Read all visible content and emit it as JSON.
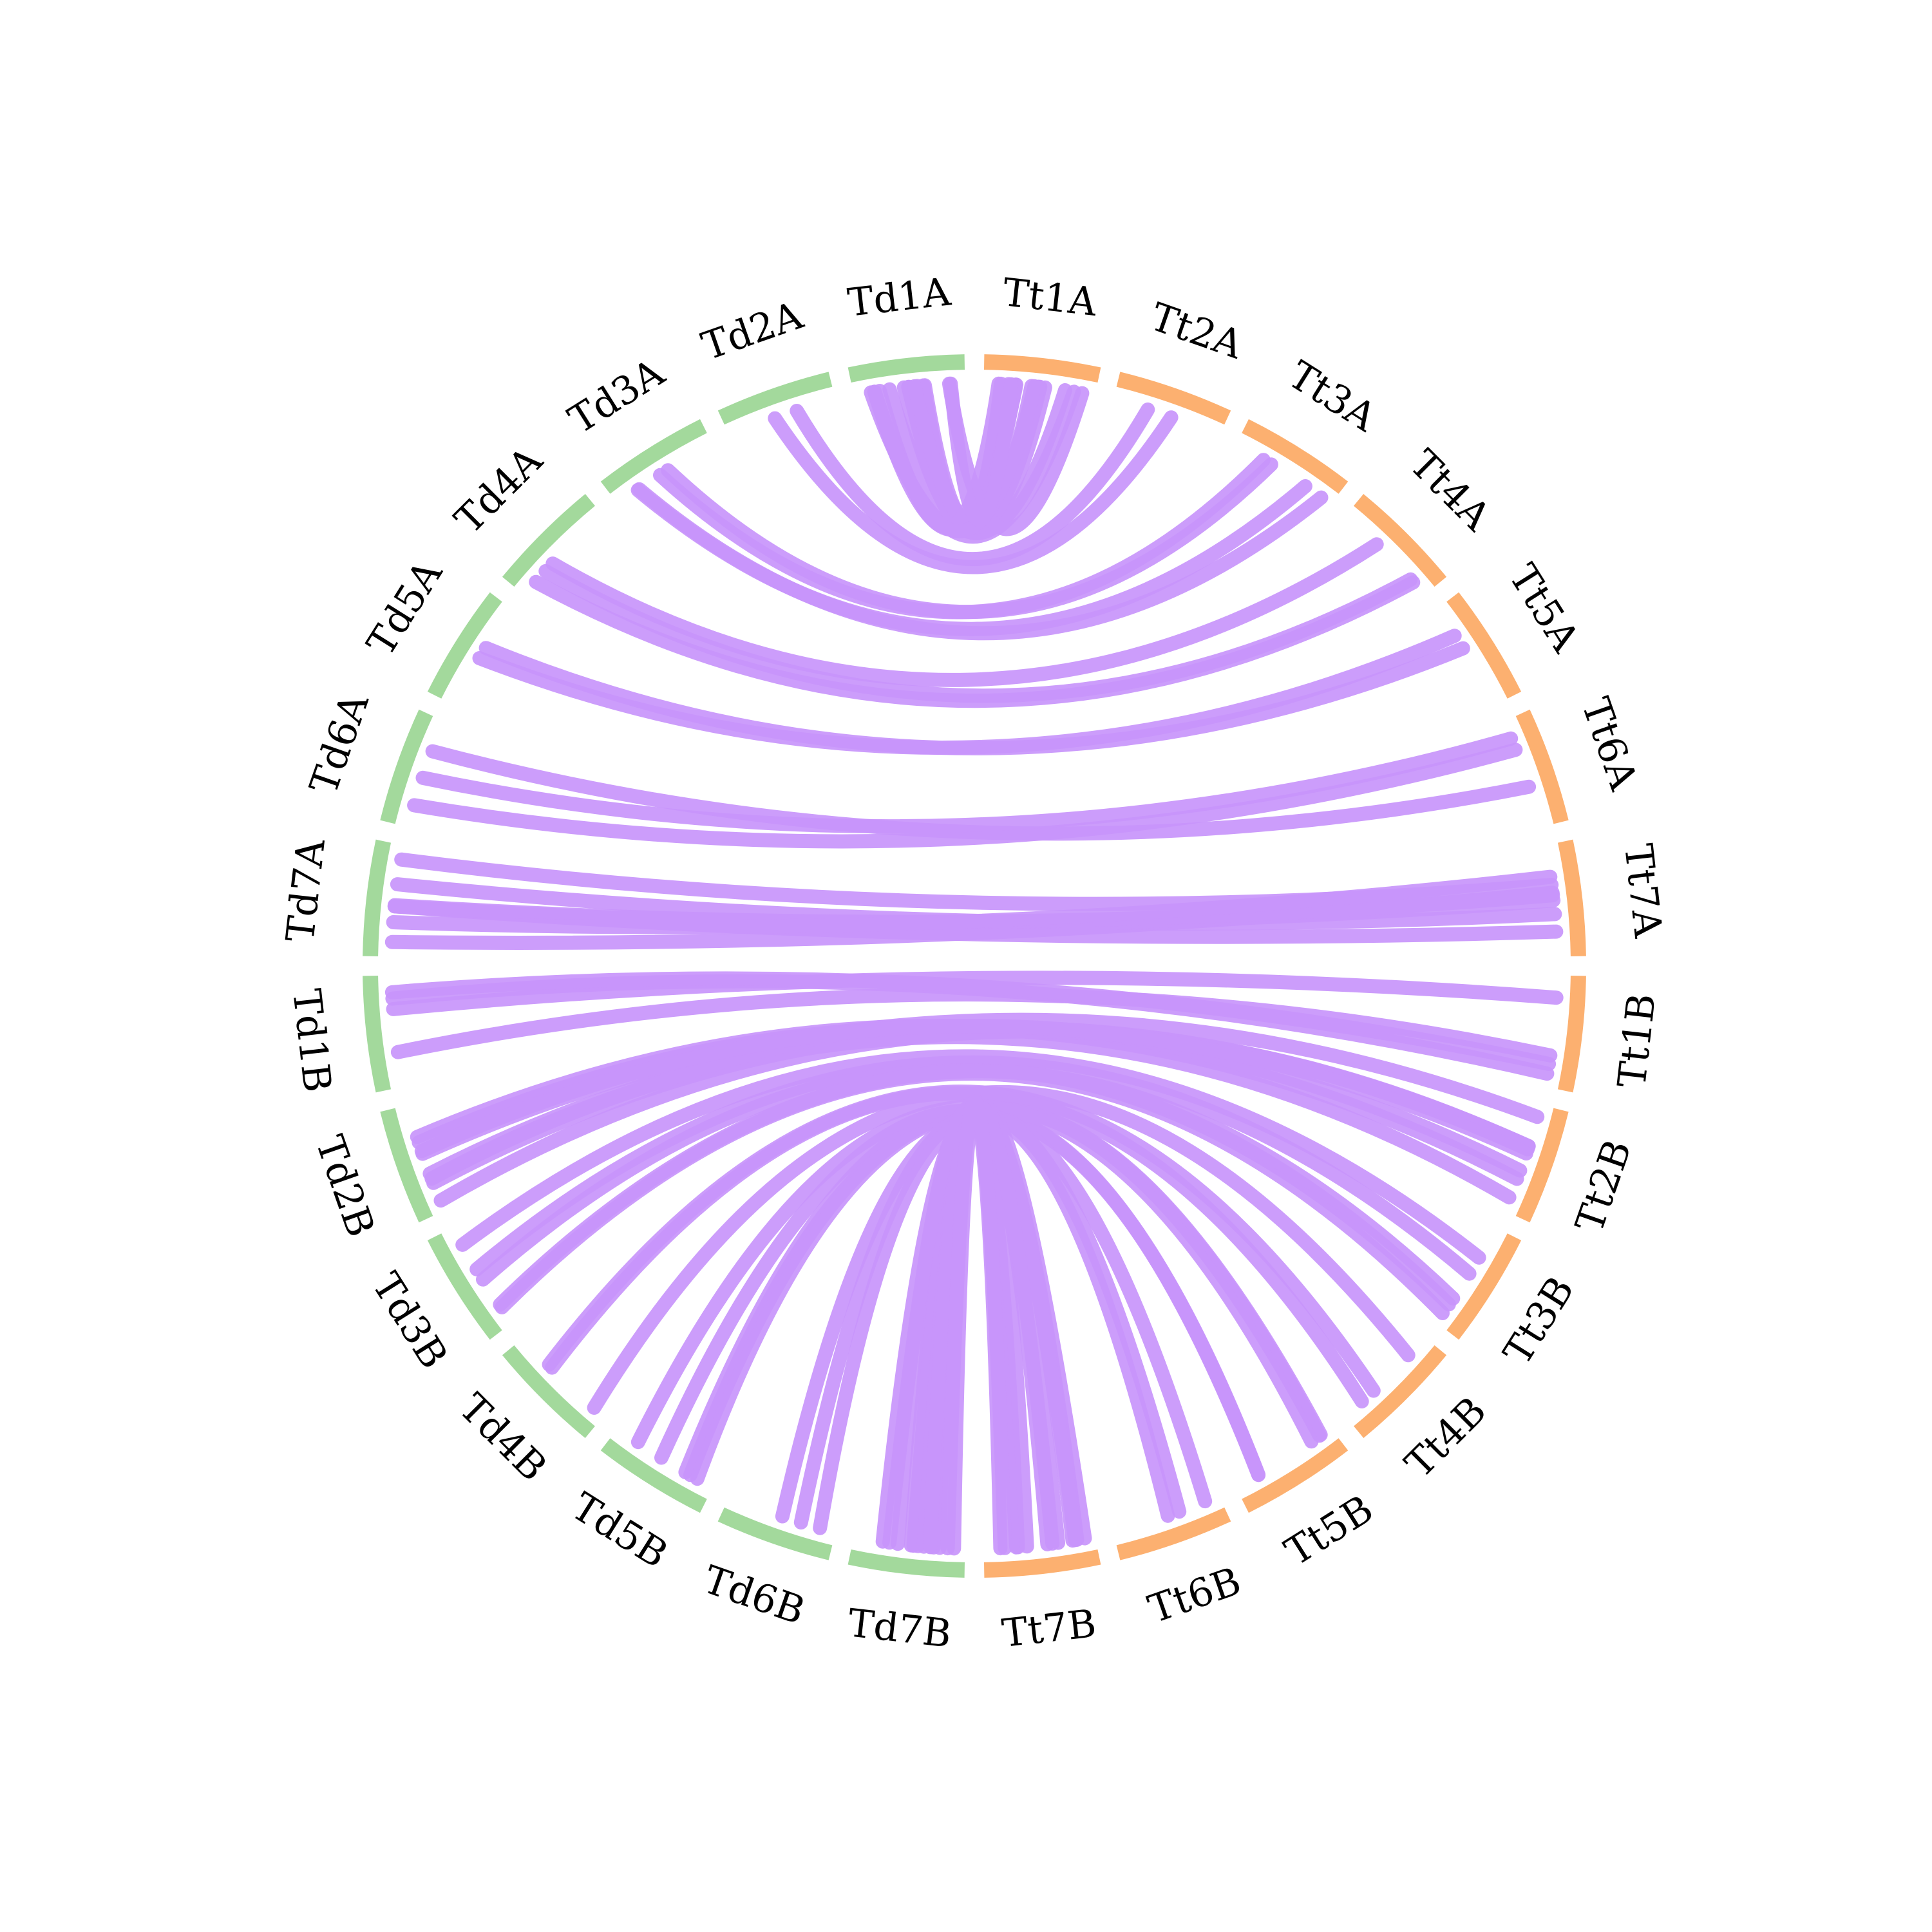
{
  "colors": {
    "background": "#ffffff",
    "td_segment": "#a3d99c",
    "tt_segment": "#fcb070",
    "link": "#c895fb",
    "label": "#000000"
  },
  "chromosomes": [
    {
      "id": "Td1A",
      "label": "Td1A",
      "group": "td"
    },
    {
      "id": "Td2A",
      "label": "Td2A",
      "group": "td"
    },
    {
      "id": "Td3A",
      "label": "Td3A",
      "group": "td"
    },
    {
      "id": "Td4A",
      "label": "Td4A",
      "group": "td"
    },
    {
      "id": "Td5A",
      "label": "Td5A",
      "group": "td"
    },
    {
      "id": "Td6A",
      "label": "Td6A",
      "group": "td"
    },
    {
      "id": "Td7A",
      "label": "Td7A",
      "group": "td"
    },
    {
      "id": "Td1B",
      "label": "Td1B",
      "group": "td"
    },
    {
      "id": "Td2B",
      "label": "Td2B",
      "group": "td"
    },
    {
      "id": "Td3B",
      "label": "Td3B",
      "group": "td"
    },
    {
      "id": "Td4B",
      "label": "Td4B",
      "group": "td"
    },
    {
      "id": "Td5B",
      "label": "Td5B",
      "group": "td"
    },
    {
      "id": "Td6B",
      "label": "Td6B",
      "group": "td"
    },
    {
      "id": "Td7B",
      "label": "Td7B",
      "group": "td"
    },
    {
      "id": "Tt1A",
      "label": "Tt1A",
      "group": "tt"
    },
    {
      "id": "Tt2A",
      "label": "Tt2A",
      "group": "tt"
    },
    {
      "id": "Tt3A",
      "label": "Tt3A",
      "group": "tt"
    },
    {
      "id": "Tt4A",
      "label": "Tt4A",
      "group": "tt"
    },
    {
      "id": "Tt5A",
      "label": "Tt5A",
      "group": "tt"
    },
    {
      "id": "Tt6A",
      "label": "Tt6A",
      "group": "tt"
    },
    {
      "id": "Tt7A",
      "label": "Tt7A",
      "group": "tt"
    },
    {
      "id": "Tt1B",
      "label": "Tt1B",
      "group": "tt"
    },
    {
      "id": "Tt2B",
      "label": "Tt2B",
      "group": "tt"
    },
    {
      "id": "Tt3B",
      "label": "Tt3B",
      "group": "tt"
    },
    {
      "id": "Tt4B",
      "label": "Tt4B",
      "group": "tt"
    },
    {
      "id": "Tt5B",
      "label": "Tt5B",
      "group": "tt"
    },
    {
      "id": "Tt6B",
      "label": "Tt6B",
      "group": "tt"
    },
    {
      "id": "Tt7B",
      "label": "Tt7B",
      "group": "tt"
    }
  ],
  "links": [
    {
      "from": "Td1A",
      "to": "Tt1A",
      "count": 14
    },
    {
      "from": "Td2A",
      "to": "Tt2A",
      "count": 2
    },
    {
      "from": "Td3A",
      "to": "Tt3A",
      "count": 4
    },
    {
      "from": "Td4A",
      "to": "Tt4A",
      "count": 3
    },
    {
      "from": "Td5A",
      "to": "Tt5A",
      "count": 2
    },
    {
      "from": "Td6A",
      "to": "Tt6A",
      "count": 3
    },
    {
      "from": "Td7A",
      "to": "Tt7A",
      "count": 7
    },
    {
      "from": "Td1B",
      "to": "Tt1B",
      "count": 4
    },
    {
      "from": "Td2B",
      "to": "Tt2B",
      "count": 8
    },
    {
      "from": "Td3B",
      "to": "Tt3B",
      "count": 5
    },
    {
      "from": "Td4B",
      "to": "Tt4B",
      "count": 3
    },
    {
      "from": "Td5B",
      "to": "Tt5B",
      "count": 5
    },
    {
      "from": "Td6B",
      "to": "Tt6B",
      "count": 3
    },
    {
      "from": "Td7B",
      "to": "Tt7B",
      "count": 12
    }
  ]
}
